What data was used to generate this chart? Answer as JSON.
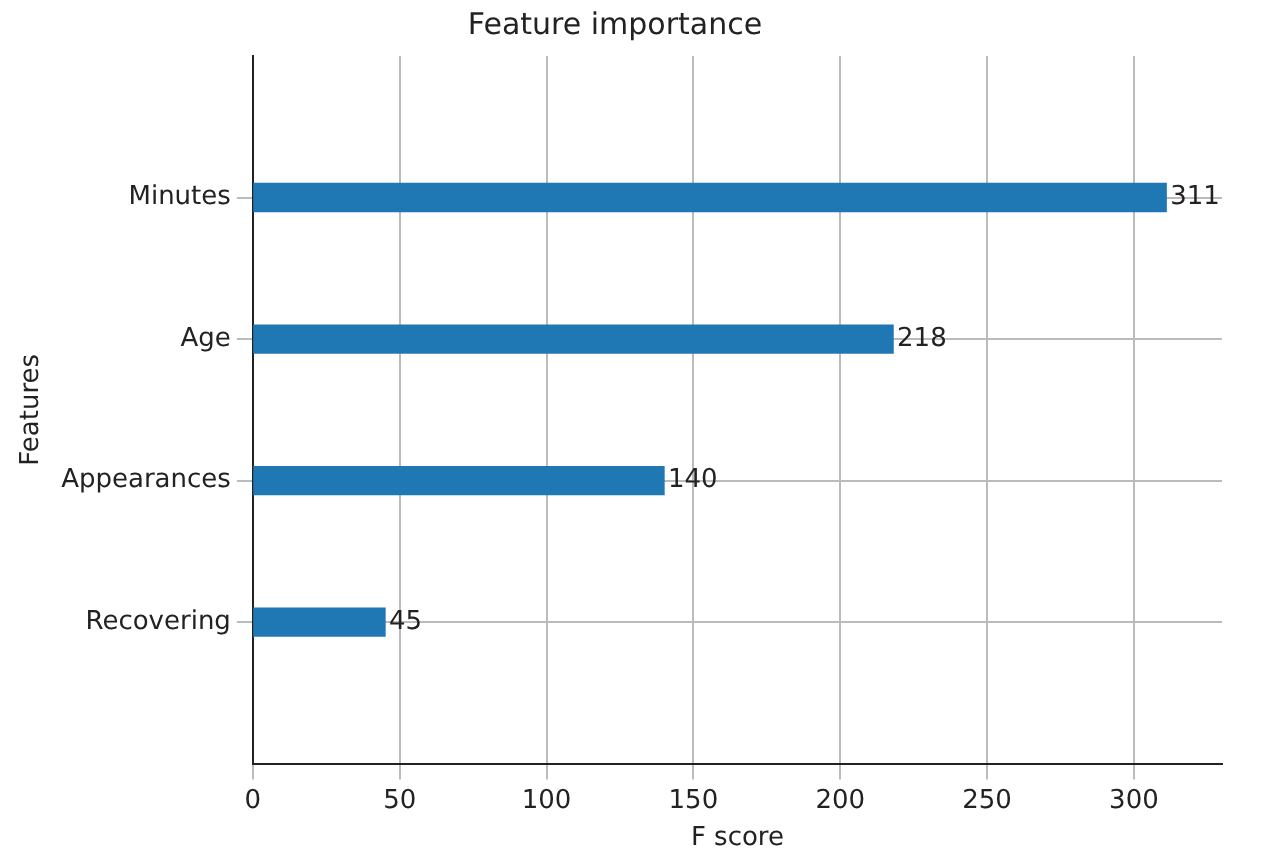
{
  "chart_data": {
    "type": "bar",
    "orientation": "horizontal",
    "title": "Feature importance",
    "xlabel": "F score",
    "ylabel": "Features",
    "categories": [
      "Minutes",
      "Age",
      "Appearances",
      "Recovering"
    ],
    "values": [
      311,
      218,
      140,
      45
    ],
    "color": "#1f77b4",
    "xlim": [
      0,
      330
    ],
    "xticks": [
      0,
      50,
      100,
      150,
      200,
      250,
      300
    ],
    "grid": true,
    "data_labels": true
  }
}
